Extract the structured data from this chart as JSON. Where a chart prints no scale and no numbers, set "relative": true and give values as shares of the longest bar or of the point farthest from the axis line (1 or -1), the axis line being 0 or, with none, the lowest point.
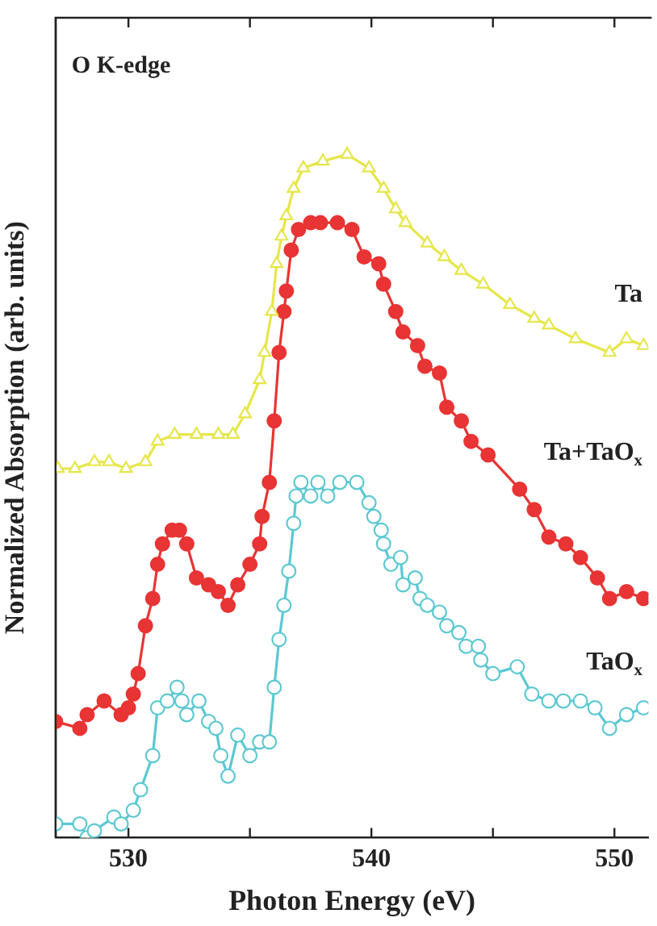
{
  "chart_data": {
    "type": "line",
    "relative": true,
    "xlabel": "Photon Energy (eV)",
    "ylabel": "Normalized Absorption (arb. units)",
    "annotations": [
      "O K-edge"
    ],
    "xlim": [
      527,
      551.4
    ],
    "xticks": [
      530,
      {
        "value": 535,
        "label": null
      },
      540,
      {
        "value": 545,
        "label": null
      },
      550
    ],
    "legend": false,
    "grid": false,
    "series": [
      {
        "name": "Ta",
        "color": "#e6e64a",
        "marker": "triangle",
        "x": [
          527.1,
          527.8,
          528.6,
          529.2,
          529.9,
          530.7,
          531.2,
          531.9,
          532.8,
          533.7,
          534.3,
          534.8,
          535.4,
          535.6,
          535.9,
          536.1,
          536.3,
          536.5,
          536.8,
          537.2,
          538.0,
          539.0,
          539.9,
          540.5,
          541.0,
          541.4,
          542.3,
          543.0,
          543.7,
          544.6,
          545.7,
          546.7,
          547.3,
          548.4,
          549.8,
          550.5,
          551.2
        ],
        "values": [
          0.54,
          0.54,
          0.55,
          0.55,
          0.54,
          0.55,
          0.58,
          0.59,
          0.59,
          0.59,
          0.59,
          0.62,
          0.67,
          0.71,
          0.77,
          0.84,
          0.88,
          0.91,
          0.95,
          0.98,
          0.99,
          1.0,
          0.98,
          0.95,
          0.92,
          0.9,
          0.87,
          0.85,
          0.83,
          0.81,
          0.78,
          0.76,
          0.75,
          0.73,
          0.71,
          0.73,
          0.72
        ]
      },
      {
        "name": "Ta+TaO$_{x}$",
        "color": "#e83434",
        "marker": "circle",
        "x": [
          527.0,
          528.0,
          528.3,
          529.0,
          529.7,
          530.0,
          530.2,
          530.4,
          530.7,
          531.0,
          531.2,
          531.4,
          531.8,
          532.1,
          532.4,
          532.8,
          533.3,
          533.7,
          534.1,
          534.5,
          535.0,
          535.4,
          535.5,
          535.8,
          536.0,
          536.2,
          536.4,
          536.5,
          536.7,
          537.0,
          537.5,
          537.9,
          538.6,
          539.2,
          539.7,
          540.3,
          540.5,
          541.0,
          541.3,
          541.9,
          542.2,
          542.8,
          543.1,
          543.7,
          544.1,
          544.8,
          546.1,
          546.7,
          547.3,
          548.0,
          548.6,
          549.3,
          549.8,
          550.5,
          551.2
        ],
        "values": [
          0.17,
          0.16,
          0.18,
          0.2,
          0.18,
          0.19,
          0.21,
          0.24,
          0.31,
          0.35,
          0.4,
          0.43,
          0.45,
          0.45,
          0.43,
          0.38,
          0.37,
          0.36,
          0.34,
          0.37,
          0.4,
          0.43,
          0.47,
          0.52,
          0.61,
          0.71,
          0.77,
          0.8,
          0.86,
          0.89,
          0.9,
          0.9,
          0.9,
          0.89,
          0.85,
          0.84,
          0.81,
          0.77,
          0.74,
          0.72,
          0.69,
          0.68,
          0.63,
          0.61,
          0.58,
          0.56,
          0.51,
          0.48,
          0.44,
          0.43,
          0.41,
          0.38,
          0.35,
          0.36,
          0.35
        ]
      },
      {
        "name": "TaO$_{x}$",
        "color": "#5cc8d2",
        "marker": "circle",
        "x": [
          527.0,
          528.0,
          528.3,
          528.6,
          529.4,
          529.7,
          530.2,
          530.5,
          531.0,
          531.2,
          531.6,
          532.0,
          532.2,
          532.4,
          532.9,
          533.3,
          533.6,
          533.8,
          534.1,
          534.5,
          535.0,
          535.4,
          535.8,
          536.0,
          536.2,
          536.4,
          536.6,
          536.8,
          536.9,
          537.1,
          537.5,
          537.8,
          538.2,
          538.7,
          539.4,
          539.9,
          540.1,
          540.4,
          540.5,
          540.8,
          541.2,
          541.3,
          541.8,
          542.0,
          542.3,
          542.8,
          543.1,
          543.6,
          543.9,
          544.4,
          544.5,
          545.0,
          546.0,
          546.6,
          547.3,
          547.9,
          548.6,
          549.2,
          549.8,
          550.5,
          551.2
        ],
        "values": [
          0.02,
          0.02,
          0.0,
          0.01,
          0.03,
          0.02,
          0.04,
          0.07,
          0.12,
          0.19,
          0.2,
          0.22,
          0.2,
          0.18,
          0.2,
          0.17,
          0.16,
          0.12,
          0.09,
          0.15,
          0.12,
          0.14,
          0.14,
          0.22,
          0.29,
          0.34,
          0.39,
          0.46,
          0.5,
          0.52,
          0.5,
          0.52,
          0.5,
          0.52,
          0.52,
          0.49,
          0.47,
          0.45,
          0.43,
          0.4,
          0.41,
          0.37,
          0.38,
          0.35,
          0.34,
          0.33,
          0.31,
          0.3,
          0.28,
          0.28,
          0.26,
          0.24,
          0.25,
          0.21,
          0.2,
          0.2,
          0.2,
          0.19,
          0.16,
          0.18,
          0.19
        ]
      }
    ]
  }
}
